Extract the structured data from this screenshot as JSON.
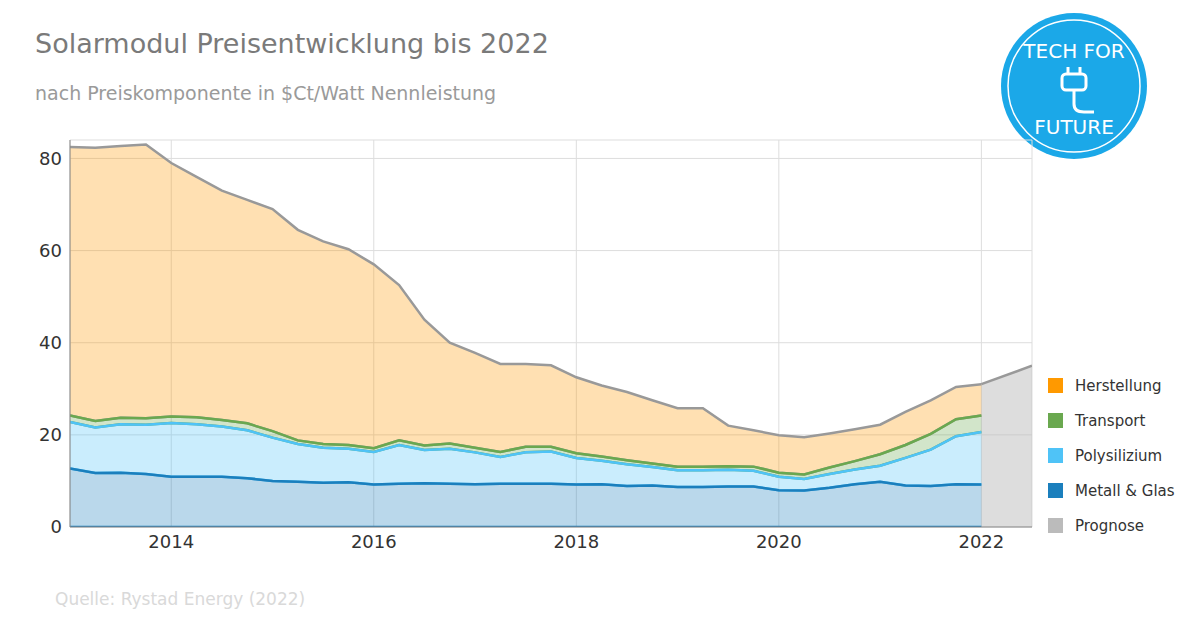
{
  "chart_data": {
    "type": "area",
    "title": "Solarmodul Preisentwicklung bis 2022",
    "subtitle": "nach Preiskomponente in $Ct/Watt Nennleistung",
    "source": "Quelle: Rystad Energy (2022)",
    "logo_text": [
      "TECH FOR",
      "FUTURE"
    ],
    "stacked": true,
    "grid": true,
    "legend": "right",
    "x": [
      2013,
      2013.25,
      2013.5,
      2013.75,
      2014,
      2014.25,
      2014.5,
      2014.75,
      2015,
      2015.25,
      2015.5,
      2015.75,
      2016,
      2016.25,
      2016.5,
      2016.75,
      2017,
      2017.25,
      2017.5,
      2017.75,
      2018,
      2018.25,
      2018.5,
      2018.75,
      2019,
      2019.25,
      2019.5,
      2019.75,
      2020,
      2020.25,
      2020.5,
      2020.75,
      2021,
      2021.25,
      2021.5,
      2021.75,
      2022,
      2022.5
    ],
    "xlim": [
      2013,
      2022.5
    ],
    "xticks": [
      2014,
      2016,
      2018,
      2020,
      2022
    ],
    "ylim": [
      0,
      84
    ],
    "yticks": [
      0,
      20,
      40,
      60,
      80
    ],
    "series": [
      {
        "name": "Metall & Glas",
        "color": "#1b7fbd",
        "values": [
          12.7,
          11.7,
          11.8,
          11.5,
          10.9,
          10.9,
          10.9,
          10.6,
          10.0,
          9.8,
          9.6,
          9.7,
          9.2,
          9.4,
          9.5,
          9.4,
          9.3,
          9.4,
          9.4,
          9.4,
          9.2,
          9.3,
          8.9,
          9.0,
          8.7,
          8.7,
          8.8,
          8.8,
          8.0,
          7.9,
          8.5,
          9.3,
          9.8,
          9.0,
          8.9,
          9.3,
          9.2,
          null
        ]
      },
      {
        "name": "Polysilizium",
        "color": "#4fc3f7",
        "values": [
          10.1,
          9.9,
          10.5,
          10.7,
          11.7,
          11.4,
          10.9,
          10.4,
          9.4,
          8.2,
          7.6,
          7.3,
          7.1,
          8.4,
          7.2,
          7.6,
          6.9,
          5.8,
          6.8,
          7.0,
          5.8,
          5.1,
          4.7,
          4.0,
          3.6,
          3.6,
          3.6,
          3.4,
          2.9,
          2.5,
          3.0,
          3.2,
          3.5,
          6.0,
          7.9,
          10.4,
          11.4,
          null
        ]
      },
      {
        "name": "Transport",
        "color": "#6aa84f",
        "values": [
          1.4,
          1.4,
          1.4,
          1.4,
          1.4,
          1.5,
          1.4,
          1.5,
          1.4,
          0.8,
          0.8,
          0.8,
          0.8,
          1.0,
          1.0,
          1.1,
          1.0,
          1.1,
          1.2,
          1.0,
          1.0,
          0.9,
          0.9,
          0.8,
          0.8,
          0.8,
          0.8,
          0.9,
          0.9,
          1.0,
          1.4,
          1.8,
          2.5,
          2.8,
          3.4,
          3.7,
          3.6,
          null
        ]
      },
      {
        "name": "Herstellung",
        "color": "#ff9900",
        "values": [
          58.3,
          59.3,
          59.0,
          59.4,
          55.0,
          52.2,
          49.8,
          48.5,
          48.2,
          45.7,
          44.0,
          42.5,
          39.9,
          33.7,
          27.3,
          21.9,
          20.6,
          19.1,
          18.0,
          17.7,
          16.5,
          15.4,
          14.8,
          13.7,
          12.7,
          12.7,
          8.8,
          7.9,
          8.1,
          8.1,
          7.4,
          6.9,
          6.4,
          7.2,
          7.3,
          7.0,
          6.8,
          null
        ]
      },
      {
        "name": "Prognose",
        "color": "#bbbbbb",
        "stacked": false,
        "values": [
          null,
          null,
          null,
          null,
          null,
          null,
          null,
          null,
          null,
          null,
          null,
          null,
          null,
          null,
          null,
          null,
          null,
          null,
          null,
          null,
          null,
          null,
          null,
          null,
          null,
          null,
          null,
          null,
          null,
          null,
          null,
          null,
          null,
          null,
          null,
          null,
          31,
          35
        ]
      }
    ]
  }
}
